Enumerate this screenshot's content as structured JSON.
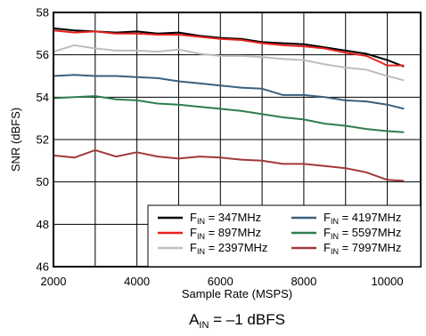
{
  "chart_data": {
    "type": "line",
    "title": "",
    "xlabel": "Sample Rate (MSPS)",
    "ylabel": "SNR (dBFS)",
    "xlim": [
      2000,
      10800
    ],
    "ylim": [
      46,
      58
    ],
    "xticks": [
      2000,
      4000,
      6000,
      8000,
      10000
    ],
    "yticks": [
      46,
      48,
      50,
      52,
      54,
      56,
      58
    ],
    "grid": true,
    "legend_position": "bottom-right",
    "footer": {
      "main": "A",
      "sub": "IN",
      "rest": " = –1 dBFS"
    },
    "series": [
      {
        "legend_main": "F",
        "legend_sub": "IN",
        "legend_rest": " = 347MHz",
        "color": "#000000",
        "x": [
          2000,
          2500,
          3000,
          3500,
          4000,
          4500,
          5000,
          5500,
          6000,
          6500,
          7000,
          7500,
          8000,
          8500,
          9000,
          9500,
          10000,
          10400
        ],
        "y": [
          57.25,
          57.15,
          57.1,
          57.05,
          57.1,
          57.0,
          57.05,
          56.9,
          56.8,
          56.75,
          56.6,
          56.55,
          56.5,
          56.35,
          56.2,
          56.05,
          55.75,
          55.45
        ]
      },
      {
        "legend_main": "F",
        "legend_sub": "IN",
        "legend_rest": " = 897MHz",
        "color": "#e8211e",
        "x": [
          2000,
          2500,
          3000,
          3500,
          4000,
          4500,
          5000,
          5500,
          6000,
          6500,
          7000,
          7500,
          8000,
          8500,
          9000,
          9500,
          10000,
          10400
        ],
        "y": [
          57.15,
          57.05,
          57.1,
          57.0,
          57.0,
          56.95,
          56.95,
          56.85,
          56.75,
          56.7,
          56.55,
          56.45,
          56.4,
          56.3,
          56.1,
          55.95,
          55.5,
          55.5
        ]
      },
      {
        "legend_main": "F",
        "legend_sub": "IN",
        "legend_rest": " = 2397MHz",
        "color": "#bdbdbd",
        "x": [
          2000,
          2500,
          3000,
          3500,
          4000,
          4500,
          5000,
          5500,
          6000,
          6500,
          7000,
          7500,
          8000,
          8500,
          9000,
          9500,
          10000,
          10400
        ],
        "y": [
          56.15,
          56.45,
          56.3,
          56.2,
          56.2,
          56.15,
          56.25,
          56.05,
          55.95,
          55.95,
          55.9,
          55.8,
          55.75,
          55.55,
          55.4,
          55.3,
          55.0,
          54.8
        ]
      },
      {
        "legend_main": "F",
        "legend_sub": "IN",
        "legend_rest": " = 4197MHz",
        "color": "#3a6180",
        "x": [
          2000,
          2500,
          3000,
          3500,
          4000,
          4500,
          5000,
          5500,
          6000,
          6500,
          7000,
          7500,
          8000,
          8500,
          9000,
          9500,
          10000,
          10400
        ],
        "y": [
          55.0,
          55.05,
          55.0,
          55.0,
          54.95,
          54.9,
          54.75,
          54.65,
          54.55,
          54.45,
          54.4,
          54.1,
          54.1,
          54.0,
          53.85,
          53.8,
          53.65,
          53.45
        ]
      },
      {
        "legend_main": "F",
        "legend_sub": "IN",
        "legend_rest": " = 5597MHz",
        "color": "#2f7d4f",
        "x": [
          2000,
          2500,
          3000,
          3500,
          4000,
          4500,
          5000,
          5500,
          6000,
          6500,
          7000,
          7500,
          8000,
          8500,
          9000,
          9500,
          10000,
          10400
        ],
        "y": [
          53.95,
          54.0,
          54.05,
          53.9,
          53.85,
          53.7,
          53.65,
          53.55,
          53.45,
          53.35,
          53.2,
          53.05,
          52.95,
          52.75,
          52.65,
          52.5,
          52.4,
          52.35
        ]
      },
      {
        "legend_main": "F",
        "legend_sub": "IN",
        "legend_rest": " = 7997MHz",
        "color": "#a0393a",
        "x": [
          2000,
          2500,
          3000,
          3500,
          4000,
          4500,
          5000,
          5500,
          6000,
          6500,
          7000,
          7500,
          8000,
          8500,
          9000,
          9500,
          10000,
          10400
        ],
        "y": [
          51.25,
          51.15,
          51.5,
          51.2,
          51.4,
          51.2,
          51.1,
          51.2,
          51.15,
          51.05,
          51.0,
          50.85,
          50.85,
          50.75,
          50.65,
          50.45,
          50.1,
          50.05
        ]
      }
    ]
  }
}
